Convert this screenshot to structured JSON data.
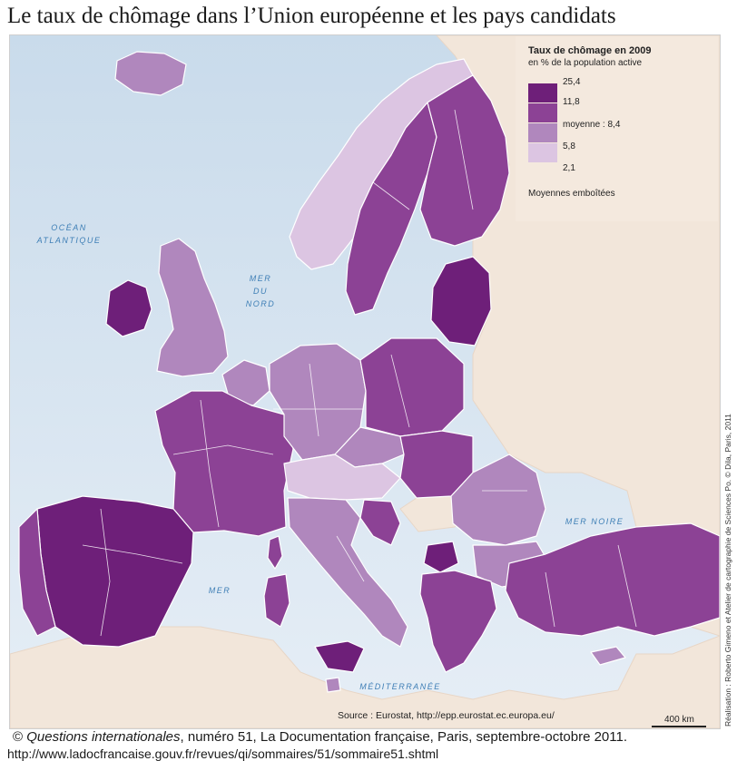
{
  "title": "Le taux de chômage dans l’Union européenne et les pays candidats",
  "colors": {
    "sea_top": "#c9dbeb",
    "sea_bottom": "#e6eef6",
    "land_outside": "#f2e6da",
    "border": "#ffffff",
    "class_1": "#6e1f79",
    "class_2": "#8c4295",
    "class_3": "#b087bd",
    "class_4": "#dcc5e2"
  },
  "legend": {
    "title": "Taux de chômage en 2009",
    "subtitle": "en % de la population active",
    "classes": [
      {
        "color": "#6e1f79",
        "label": "25,4"
      },
      {
        "color": "#8c4295",
        "label": "11,8"
      },
      {
        "color": "#b087bd",
        "label": "moyenne : 8,4"
      },
      {
        "color": "#dcc5e2",
        "label": "5,8"
      },
      {
        "color": "",
        "label": "2,1"
      }
    ],
    "note": "Moyennes emboîtées"
  },
  "seas": {
    "ocean_line1": "OCÉAN",
    "ocean_line2": "ATLANTIQUE",
    "mer_nord_line1": "MER",
    "mer_nord_line2": "DU",
    "mer_nord_line3": "NORD",
    "mer_noire": "MER NOIRE",
    "mer": "MER",
    "mediterranee": "MÉDITERRANÉE"
  },
  "regions": [
    {
      "name": "Iceland",
      "class": 3
    },
    {
      "name": "Norway",
      "class": 4
    },
    {
      "name": "Sweden",
      "class": 2
    },
    {
      "name": "Finland",
      "class": 2
    },
    {
      "name": "Ireland",
      "class": 1
    },
    {
      "name": "United Kingdom",
      "class": 3
    },
    {
      "name": "Latvia-Lithuania",
      "class": 1
    },
    {
      "name": "Estonia",
      "class": 1
    },
    {
      "name": "Benelux",
      "class": 3
    },
    {
      "name": "France",
      "class": 2
    },
    {
      "name": "Spain",
      "class": 1
    },
    {
      "name": "Portugal",
      "class": 2
    },
    {
      "name": "Germany",
      "class": 3
    },
    {
      "name": "Switzerland-Austria",
      "class": 4
    },
    {
      "name": "Poland",
      "class": 2
    },
    {
      "name": "Czech Republic",
      "class": 3
    },
    {
      "name": "Slovakia-Hungary",
      "class": 2
    },
    {
      "name": "Slovenia",
      "class": 4
    },
    {
      "name": "Croatia",
      "class": 2
    },
    {
      "name": "Romania",
      "class": 3
    },
    {
      "name": "Bulgaria",
      "class": 3
    },
    {
      "name": "Macedonia",
      "class": 1
    },
    {
      "name": "Greece",
      "class": 2
    },
    {
      "name": "Italy",
      "class": 3
    },
    {
      "name": "Sardinia",
      "class": 2
    },
    {
      "name": "Sicily",
      "class": 1
    },
    {
      "name": "Corsica",
      "class": 2
    },
    {
      "name": "Turkey",
      "class": 2
    },
    {
      "name": "Cyprus",
      "class": 3
    },
    {
      "name": "Malta",
      "class": 3
    }
  ],
  "source": "Source : Eurostat, http://epp.eurostat.ec.europa.eu/",
  "scale_label": "400 km",
  "credit": "Réalisation : Roberto Gimeno et Atelier de cartographie de Sciences Po. © Dila, Paris, 2011",
  "footer": {
    "copyright": "©",
    "publication": "Questions internationales",
    "rest": ", numéro 51, La Documentation française, Paris, septembre-octobre 2011.",
    "url": "http://www.ladocfrancaise.gouv.fr/revues/qi/sommaires/51/sommaire51.shtml"
  }
}
